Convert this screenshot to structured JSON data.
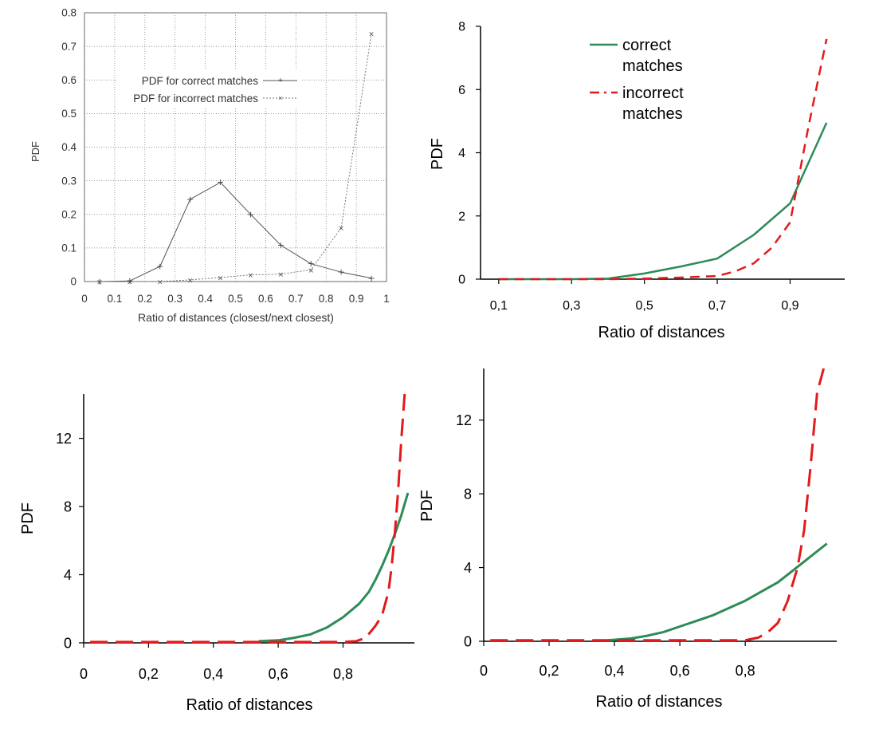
{
  "chart_data": [
    {
      "type": "line",
      "panel": "top-left",
      "xlabel": "Ratio of distances (closest/next closest)",
      "ylabel": "PDF",
      "xlim": [
        0,
        1
      ],
      "ylim": [
        0,
        0.8
      ],
      "xticks": [
        "0",
        "0.1",
        "0.2",
        "0.3",
        "0.4",
        "0.5",
        "0.6",
        "0.7",
        "0.8",
        "0.9",
        "1"
      ],
      "yticks": [
        "0",
        "0.1",
        "0.2",
        "0.3",
        "0.4",
        "0.5",
        "0.6",
        "0.7",
        "0.8"
      ],
      "grid": true,
      "legend_position": "upper-left",
      "series": [
        {
          "name": "PDF for correct matches",
          "color": "#555555",
          "dash": "none",
          "x": [
            0.05,
            0.15,
            0.25,
            0.35,
            0.45,
            0.55,
            0.65,
            0.75,
            0.85,
            0.95
          ],
          "y": [
            0,
            0.002,
            0.045,
            0.245,
            0.295,
            0.2,
            0.108,
            0.053,
            0.028,
            0.01
          ]
        },
        {
          "name": "PDF for incorrect matches",
          "color": "#777777",
          "dash": "2,2",
          "x": [
            0.05,
            0.15,
            0.25,
            0.35,
            0.45,
            0.55,
            0.65,
            0.75,
            0.85,
            0.95
          ],
          "y": [
            0,
            0,
            0,
            0.005,
            0.012,
            0.02,
            0.022,
            0.035,
            0.16,
            0.738
          ]
        }
      ]
    },
    {
      "type": "line",
      "panel": "top-right",
      "xlabel": "Ratio of distances",
      "ylabel": "PDF",
      "xlim": [
        0.05,
        1.05
      ],
      "ylim": [
        0,
        8
      ],
      "xticks": [
        "0,1",
        "0,3",
        "0,5",
        "0,7",
        "0,9"
      ],
      "yticks": [
        "0",
        "2",
        "4",
        "6",
        "8"
      ],
      "grid": false,
      "legend_position": "top-center",
      "series": [
        {
          "name": "correct matches",
          "color": "#2e8b57",
          "dash": "none",
          "x": [
            0.1,
            0.2,
            0.3,
            0.4,
            0.5,
            0.6,
            0.7,
            0.8,
            0.9,
            1.0
          ],
          "y": [
            0,
            0,
            0,
            0.02,
            0.18,
            0.4,
            0.65,
            1.4,
            2.4,
            4.95
          ]
        },
        {
          "name": "incorrect matches",
          "color": "#e31a1c",
          "dash": "12,8",
          "x": [
            0.1,
            0.2,
            0.3,
            0.4,
            0.5,
            0.6,
            0.7,
            0.75,
            0.8,
            0.85,
            0.9,
            0.95,
            1.0
          ],
          "y": [
            0,
            0,
            0,
            0,
            0.02,
            0.05,
            0.1,
            0.25,
            0.5,
            1.0,
            1.8,
            4.8,
            7.6
          ]
        }
      ]
    },
    {
      "type": "line",
      "panel": "bottom-left",
      "xlabel": "Ratio of distances",
      "ylabel": "PDF",
      "xlim": [
        0,
        1.02
      ],
      "ylim": [
        0,
        14.6
      ],
      "xticks": [
        "0",
        "0,2",
        "0,4",
        "0,6",
        "0,8"
      ],
      "yticks": [
        "0",
        "4",
        "8",
        "12"
      ],
      "grid": false,
      "series": [
        {
          "name": "",
          "color": "#2e8b57",
          "dash": "none",
          "x": [
            0.54,
            0.6,
            0.65,
            0.7,
            0.75,
            0.8,
            0.85,
            0.88,
            0.9,
            0.92,
            0.94,
            0.96,
            0.98,
            1.0
          ],
          "y": [
            0.1,
            0.15,
            0.3,
            0.5,
            0.9,
            1.5,
            2.3,
            3.0,
            3.7,
            4.5,
            5.4,
            6.4,
            7.5,
            8.8
          ]
        },
        {
          "name": "",
          "color": "#e31a1c",
          "dash": "22,10",
          "x": [
            0.02,
            0.2,
            0.4,
            0.6,
            0.8,
            0.84,
            0.87,
            0.9,
            0.92,
            0.94,
            0.95,
            0.96,
            0.97,
            0.98,
            0.99
          ],
          "y": [
            0.05,
            0.05,
            0.05,
            0.05,
            0.05,
            0.1,
            0.3,
            1.0,
            1.6,
            3.0,
            4.5,
            6.5,
            9.0,
            12.0,
            14.6
          ]
        }
      ]
    },
    {
      "type": "line",
      "panel": "bottom-right",
      "xlabel": "Ratio of distances",
      "ylabel": "PDF",
      "xlim": [
        0,
        1.08
      ],
      "ylim": [
        0,
        14.8
      ],
      "xticks": [
        "0",
        "0,2",
        "0,4",
        "0,6",
        "0,8"
      ],
      "yticks": [
        "0",
        "4",
        "8",
        "12"
      ],
      "grid": false,
      "series": [
        {
          "name": "",
          "color": "#2e8b57",
          "dash": "none",
          "x": [
            0.38,
            0.45,
            0.5,
            0.55,
            0.6,
            0.65,
            0.7,
            0.75,
            0.8,
            0.85,
            0.9,
            0.95,
            1.0,
            1.05
          ],
          "y": [
            0.05,
            0.15,
            0.3,
            0.5,
            0.8,
            1.1,
            1.4,
            1.8,
            2.2,
            2.7,
            3.2,
            3.9,
            4.6,
            5.3
          ]
        },
        {
          "name": "",
          "color": "#e31a1c",
          "dash": "22,10",
          "x": [
            0.02,
            0.2,
            0.4,
            0.6,
            0.8,
            0.84,
            0.87,
            0.9,
            0.93,
            0.96,
            0.98,
            1.0,
            1.02,
            1.04
          ],
          "y": [
            0.05,
            0.05,
            0.05,
            0.05,
            0.05,
            0.2,
            0.5,
            1.0,
            2.2,
            4.0,
            6.0,
            9.5,
            13.5,
            14.8
          ]
        }
      ]
    }
  ],
  "legend_top_right": {
    "correct_line1": "correct",
    "correct_line2": "matches",
    "incorrect_line1": "incorrect",
    "incorrect_line2": "matches"
  }
}
